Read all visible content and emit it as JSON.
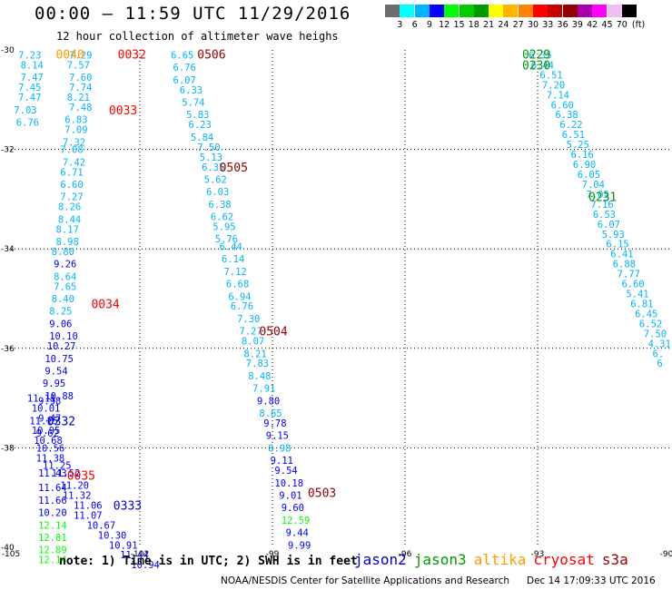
{
  "header": {
    "title": "00:00 — 11:59 UTC 11/29/2016",
    "subtitle": "12 hour collection of altimeter wave heighs"
  },
  "colorbar": {
    "colors": [
      "#6e6e6e",
      "#00ffff",
      "#00b4ff",
      "#0000ff",
      "#00ff00",
      "#00cd00",
      "#009900",
      "#ffff00",
      "#ffb400",
      "#ff8200",
      "#ff0000",
      "#c80000",
      "#960000",
      "#aa00aa",
      "#ff00ff",
      "#f0bef0",
      "#000000"
    ],
    "labels": [
      "3",
      "6",
      "9",
      "12",
      "15",
      "18",
      "21",
      "24",
      "27",
      "30",
      "33",
      "36",
      "39",
      "42",
      "45",
      "70"
    ],
    "unit": "(ft)"
  },
  "footer": {
    "note": "note: 1) Time is in UTC; 2) SWH is in feet",
    "legend": [
      {
        "name": "jason2",
        "color": "#0000c8"
      },
      {
        "name": "jason3",
        "color": "#009900"
      },
      {
        "name": "altika",
        "color": "#ff9900"
      },
      {
        "name": "cryosat",
        "color": "#ff0000"
      },
      {
        "name": "s3a",
        "color": "#960000"
      }
    ],
    "credit": "NOAA/NESDIS Center for Satellite Applications and Research",
    "timestamp": "Dec 14 17:09:33 UTC 2016"
  },
  "chart_data": {
    "type": "scatter",
    "title": "00:00 — 11:59 UTC 11/29/2016",
    "xlim": [
      -105,
      -90
    ],
    "ylim": [
      -40,
      -30
    ],
    "xticks": [
      -105,
      -102,
      -99,
      -96,
      -93,
      -90
    ],
    "xtick_labels": [
      "-105",
      "-102",
      "-99",
      "-96",
      "-93",
      "-90"
    ],
    "yticks": [
      -30,
      -32,
      -34,
      -36,
      -38,
      -40
    ],
    "ytick_labels": [
      "-30",
      "-32",
      "-34",
      "-36",
      "-38",
      "-40"
    ],
    "grid": true,
    "tracks": [
      {
        "satellite": "altika",
        "time": "0040",
        "label_x": -103.9,
        "label_y": -30.08
      },
      {
        "satellite": "cryosat",
        "time": "0032",
        "label_x": -102.5,
        "label_y": -30.08
      },
      {
        "satellite": "cryosat",
        "time": "0033",
        "label_x": -102.7,
        "label_y": -31.2
      },
      {
        "satellite": "cryosat",
        "time": "0034",
        "label_x": -103.1,
        "label_y": -35.1
      },
      {
        "satellite": "cryosat",
        "time": "0035",
        "label_x": -103.65,
        "label_y": -38.55
      },
      {
        "satellite": "jason2",
        "time": "0332",
        "label_x": -104.1,
        "label_y": -37.45
      },
      {
        "satellite": "jason2",
        "time": "0333",
        "label_x": -102.6,
        "label_y": -39.15
      },
      {
        "satellite": "s3a",
        "time": "0506",
        "label_x": -100.7,
        "label_y": -30.08
      },
      {
        "satellite": "s3a",
        "time": "0505",
        "label_x": -100.2,
        "label_y": -32.35
      },
      {
        "satellite": "s3a",
        "time": "0504",
        "label_x": -99.3,
        "label_y": -35.65
      },
      {
        "satellite": "s3a",
        "time": "0503",
        "label_x": -98.2,
        "label_y": -38.9
      },
      {
        "satellite": "jason3",
        "time": "0229",
        "label_x": -93.35,
        "label_y": -30.08
      },
      {
        "satellite": "jason3",
        "time": "0230",
        "label_x": -93.35,
        "label_y": -30.3
      },
      {
        "satellite": "jason3",
        "time": "0231",
        "label_x": -91.85,
        "label_y": -32.95
      }
    ],
    "points": [
      {
        "x": -104.75,
        "y": -30.1,
        "v": "7.23",
        "c": "#00b4ff"
      },
      {
        "x": -104.7,
        "y": -30.3,
        "v": "8.14",
        "c": "#00b4ff"
      },
      {
        "x": -104.7,
        "y": -30.55,
        "v": "7.47",
        "c": "#00b4ff"
      },
      {
        "x": -104.75,
        "y": -30.75,
        "v": "7.45",
        "c": "#00b4ff"
      },
      {
        "x": -104.75,
        "y": -30.95,
        "v": "7.47",
        "c": "#00b4ff"
      },
      {
        "x": -104.85,
        "y": -31.2,
        "v": "7.03",
        "c": "#00b4ff"
      },
      {
        "x": -104.8,
        "y": -31.45,
        "v": "6.76",
        "c": "#00b4ff"
      },
      {
        "x": -103.6,
        "y": -30.1,
        "v": "7.29",
        "c": "#00b4ff"
      },
      {
        "x": -103.65,
        "y": -30.3,
        "v": "7.57",
        "c": "#00b4ff"
      },
      {
        "x": -103.6,
        "y": -30.55,
        "v": "7.60",
        "c": "#00b4ff"
      },
      {
        "x": -103.6,
        "y": -30.75,
        "v": "7.74",
        "c": "#00b4ff"
      },
      {
        "x": -103.65,
        "y": -30.95,
        "v": "8.21",
        "c": "#00b4ff"
      },
      {
        "x": -103.6,
        "y": -31.15,
        "v": "7.48",
        "c": "#00b4ff"
      },
      {
        "x": -103.7,
        "y": -31.4,
        "v": "6.83",
        "c": "#00b4ff"
      },
      {
        "x": -103.7,
        "y": -31.6,
        "v": "7.09",
        "c": "#00b4ff"
      },
      {
        "x": -103.75,
        "y": -31.85,
        "v": "7.32",
        "c": "#00b4ff"
      },
      {
        "x": -103.8,
        "y": -32.0,
        "v": "7.08",
        "c": "#00b4ff"
      },
      {
        "x": -103.75,
        "y": -32.25,
        "v": "7.42",
        "c": "#00b4ff"
      },
      {
        "x": -103.8,
        "y": -32.45,
        "v": "6.71",
        "c": "#00b4ff"
      },
      {
        "x": -103.8,
        "y": -32.7,
        "v": "6.60",
        "c": "#00b4ff"
      },
      {
        "x": -103.8,
        "y": -32.95,
        "v": "7.27",
        "c": "#00b4ff"
      },
      {
        "x": -103.85,
        "y": -33.15,
        "v": "8.26",
        "c": "#00b4ff"
      },
      {
        "x": -103.85,
        "y": -33.4,
        "v": "8.44",
        "c": "#00b4ff"
      },
      {
        "x": -103.9,
        "y": -33.6,
        "v": "8.17",
        "c": "#00b4ff"
      },
      {
        "x": -103.9,
        "y": -33.85,
        "v": "8.98",
        "c": "#00b4ff"
      },
      {
        "x": -104.0,
        "y": -34.05,
        "v": "8.80",
        "c": "#00b4ff"
      },
      {
        "x": -103.95,
        "y": -34.3,
        "v": "9.26",
        "c": "#0000ff"
      },
      {
        "x": -103.95,
        "y": -34.55,
        "v": "8.64",
        "c": "#00b4ff"
      },
      {
        "x": -103.95,
        "y": -34.75,
        "v": "7.65",
        "c": "#00b4ff"
      },
      {
        "x": -104.0,
        "y": -35.0,
        "v": "8.40",
        "c": "#00b4ff"
      },
      {
        "x": -104.05,
        "y": -35.25,
        "v": "8.25",
        "c": "#00b4ff"
      },
      {
        "x": -104.05,
        "y": -35.5,
        "v": "9.06",
        "c": "#0000ff"
      },
      {
        "x": -104.05,
        "y": -35.75,
        "v": "10.10",
        "c": "#0000ff"
      },
      {
        "x": -104.1,
        "y": -35.95,
        "v": "10.27",
        "c": "#0000ff"
      },
      {
        "x": -104.15,
        "y": -36.2,
        "v": "10.75",
        "c": "#0000ff"
      },
      {
        "x": -104.15,
        "y": -36.45,
        "v": "9.54",
        "c": "#0000ff"
      },
      {
        "x": -104.2,
        "y": -36.7,
        "v": "9.95",
        "c": "#0000ff"
      },
      {
        "x": -104.15,
        "y": -36.95,
        "v": "10.88",
        "c": "#0000ff"
      },
      {
        "x": -104.3,
        "y": -37.05,
        "v": "9.98",
        "c": "#0000ff"
      },
      {
        "x": -104.55,
        "y": -37.0,
        "v": "11.11",
        "c": "#0000ff"
      },
      {
        "x": -104.45,
        "y": -37.2,
        "v": "10.01",
        "c": "#0000ff"
      },
      {
        "x": -104.3,
        "y": -37.4,
        "v": "9.47",
        "c": "#0000ff"
      },
      {
        "x": -104.5,
        "y": -37.45,
        "v": "11.15",
        "c": "#0000ff"
      },
      {
        "x": -104.35,
        "y": -37.7,
        "v": "9.62",
        "c": "#0000ff"
      },
      {
        "x": -104.45,
        "y": -37.65,
        "v": "10.95",
        "c": "#0000ff"
      },
      {
        "x": -104.4,
        "y": -37.85,
        "v": "10.68",
        "c": "#0000ff"
      },
      {
        "x": -104.35,
        "y": -38.0,
        "v": "10.56",
        "c": "#0000ff"
      },
      {
        "x": -104.35,
        "y": -38.2,
        "v": "11.38",
        "c": "#0000ff"
      },
      {
        "x": -104.2,
        "y": -38.35,
        "v": "11.25",
        "c": "#0000ff"
      },
      {
        "x": -104.3,
        "y": -38.5,
        "v": "11.43",
        "c": "#0000ff"
      },
      {
        "x": -104.0,
        "y": -38.5,
        "v": "11.52",
        "c": "#0000ff"
      },
      {
        "x": -103.8,
        "y": -38.75,
        "v": "11.20",
        "c": "#0000ff"
      },
      {
        "x": -104.3,
        "y": -38.8,
        "v": "11.64",
        "c": "#0000ff"
      },
      {
        "x": -103.75,
        "y": -38.95,
        "v": "11.32",
        "c": "#0000ff"
      },
      {
        "x": -104.3,
        "y": -39.05,
        "v": "11.66",
        "c": "#0000ff"
      },
      {
        "x": -103.5,
        "y": -39.15,
        "v": "11.06",
        "c": "#0000ff"
      },
      {
        "x": -104.3,
        "y": -39.3,
        "v": "10.20",
        "c": "#0000ff"
      },
      {
        "x": -103.5,
        "y": -39.35,
        "v": "11.07",
        "c": "#0000ff"
      },
      {
        "x": -104.3,
        "y": -39.55,
        "v": "12.14",
        "c": "#00ff00"
      },
      {
        "x": -103.2,
        "y": -39.55,
        "v": "10.67",
        "c": "#0000ff"
      },
      {
        "x": -104.3,
        "y": -39.8,
        "v": "12.81",
        "c": "#00ff00"
      },
      {
        "x": -102.95,
        "y": -39.75,
        "v": "10.30",
        "c": "#0000ff"
      },
      {
        "x": -104.3,
        "y": -40.05,
        "v": "12.89",
        "c": "#00ff00"
      },
      {
        "x": -102.7,
        "y": -39.95,
        "v": "10.91",
        "c": "#0000ff"
      },
      {
        "x": -104.3,
        "y": -40.25,
        "v": "12.14",
        "c": "#00ff00"
      },
      {
        "x": -102.45,
        "y": -40.15,
        "v": "11.44",
        "c": "#0000ff"
      },
      {
        "x": -102.2,
        "y": -40.35,
        "v": "10.94",
        "c": "#0000ff"
      },
      {
        "x": -101.3,
        "y": -30.1,
        "v": "6.65",
        "c": "#00b4ff"
      },
      {
        "x": -101.25,
        "y": -30.35,
        "v": "6.76",
        "c": "#00b4ff"
      },
      {
        "x": -101.25,
        "y": -30.6,
        "v": "6.07",
        "c": "#00b4ff"
      },
      {
        "x": -101.1,
        "y": -30.8,
        "v": "6.33",
        "c": "#00b4ff"
      },
      {
        "x": -101.05,
        "y": -31.05,
        "v": "5.74",
        "c": "#00b4ff"
      },
      {
        "x": -100.95,
        "y": -31.3,
        "v": "5.83",
        "c": "#00b4ff"
      },
      {
        "x": -100.9,
        "y": -31.5,
        "v": "6.23",
        "c": "#00b4ff"
      },
      {
        "x": -100.85,
        "y": -31.75,
        "v": "5.84",
        "c": "#00b4ff"
      },
      {
        "x": -100.7,
        "y": -31.95,
        "v": "7.50",
        "c": "#00b4ff"
      },
      {
        "x": -100.65,
        "y": -32.15,
        "v": "5.13",
        "c": "#00b4ff"
      },
      {
        "x": -100.6,
        "y": -32.35,
        "v": "6.35",
        "c": "#00b4ff"
      },
      {
        "x": -100.55,
        "y": -32.6,
        "v": "5.62",
        "c": "#00b4ff"
      },
      {
        "x": -100.5,
        "y": -32.85,
        "v": "6.03",
        "c": "#00b4ff"
      },
      {
        "x": -100.45,
        "y": -33.1,
        "v": "6.38",
        "c": "#00b4ff"
      },
      {
        "x": -100.4,
        "y": -33.35,
        "v": "6.62",
        "c": "#00b4ff"
      },
      {
        "x": -100.35,
        "y": -33.55,
        "v": "5.95",
        "c": "#00b4ff"
      },
      {
        "x": -100.3,
        "y": -33.8,
        "v": "5.76",
        "c": "#00b4ff"
      },
      {
        "x": -100.2,
        "y": -33.95,
        "v": "6.44",
        "c": "#00b4ff"
      },
      {
        "x": -100.15,
        "y": -34.2,
        "v": "6.14",
        "c": "#00b4ff"
      },
      {
        "x": -100.1,
        "y": -34.45,
        "v": "7.12",
        "c": "#00b4ff"
      },
      {
        "x": -100.05,
        "y": -34.7,
        "v": "6.68",
        "c": "#00b4ff"
      },
      {
        "x": -100.0,
        "y": -34.95,
        "v": "6.94",
        "c": "#00b4ff"
      },
      {
        "x": -99.95,
        "y": -35.15,
        "v": "6.76",
        "c": "#00b4ff"
      },
      {
        "x": -99.8,
        "y": -35.4,
        "v": "7.30",
        "c": "#00b4ff"
      },
      {
        "x": -99.75,
        "y": -35.65,
        "v": "7.27",
        "c": "#00b4ff"
      },
      {
        "x": -99.7,
        "y": -35.85,
        "v": "8.07",
        "c": "#00b4ff"
      },
      {
        "x": -99.65,
        "y": -36.1,
        "v": "8.21",
        "c": "#00b4ff"
      },
      {
        "x": -99.6,
        "y": -36.3,
        "v": "7.83",
        "c": "#00b4ff"
      },
      {
        "x": -99.55,
        "y": -36.55,
        "v": "8.48",
        "c": "#00b4ff"
      },
      {
        "x": -99.45,
        "y": -36.8,
        "v": "7.91",
        "c": "#00b4ff"
      },
      {
        "x": -99.35,
        "y": -37.05,
        "v": "9.80",
        "c": "#0000ff"
      },
      {
        "x": -99.3,
        "y": -37.3,
        "v": "8.65",
        "c": "#00b4ff"
      },
      {
        "x": -99.2,
        "y": -37.5,
        "v": "9.78",
        "c": "#0000ff"
      },
      {
        "x": -99.15,
        "y": -37.75,
        "v": "9.15",
        "c": "#0000ff"
      },
      {
        "x": -99.1,
        "y": -38.0,
        "v": "8.98",
        "c": "#00b4ff"
      },
      {
        "x": -99.05,
        "y": -38.25,
        "v": "9.11",
        "c": "#0000ff"
      },
      {
        "x": -98.95,
        "y": -38.45,
        "v": "9.54",
        "c": "#0000ff"
      },
      {
        "x": -98.95,
        "y": -38.7,
        "v": "10.18",
        "c": "#0000ff"
      },
      {
        "x": -98.85,
        "y": -38.95,
        "v": "9.01",
        "c": "#0000ff"
      },
      {
        "x": -98.8,
        "y": -39.2,
        "v": "9.60",
        "c": "#0000ff"
      },
      {
        "x": -98.8,
        "y": -39.45,
        "v": "12.59",
        "c": "#00ff00"
      },
      {
        "x": -98.7,
        "y": -39.7,
        "v": "9.44",
        "c": "#0000ff"
      },
      {
        "x": -98.65,
        "y": -39.95,
        "v": "9.99",
        "c": "#0000ff"
      },
      {
        "x": -93.2,
        "y": -30.1,
        "v": "6.35",
        "c": "#00b4ff"
      },
      {
        "x": -93.15,
        "y": -30.3,
        "v": "6.44",
        "c": "#00b4ff"
      },
      {
        "x": -92.95,
        "y": -30.5,
        "v": "6.51",
        "c": "#00b4ff"
      },
      {
        "x": -92.9,
        "y": -30.7,
        "v": "7.20",
        "c": "#00b4ff"
      },
      {
        "x": -92.8,
        "y": -30.9,
        "v": "7.14",
        "c": "#00b4ff"
      },
      {
        "x": -92.7,
        "y": -31.1,
        "v": "6.60",
        "c": "#00b4ff"
      },
      {
        "x": -92.6,
        "y": -31.3,
        "v": "6.38",
        "c": "#00b4ff"
      },
      {
        "x": -92.5,
        "y": -31.5,
        "v": "6.22",
        "c": "#00b4ff"
      },
      {
        "x": -92.45,
        "y": -31.7,
        "v": "6.51",
        "c": "#00b4ff"
      },
      {
        "x": -92.35,
        "y": -31.9,
        "v": "5.25",
        "c": "#00b4ff"
      },
      {
        "x": -92.25,
        "y": -32.1,
        "v": "6.16",
        "c": "#00b4ff"
      },
      {
        "x": -92.2,
        "y": -32.3,
        "v": "6.90",
        "c": "#00b4ff"
      },
      {
        "x": -92.1,
        "y": -32.5,
        "v": "6.05",
        "c": "#00b4ff"
      },
      {
        "x": -92.0,
        "y": -32.7,
        "v": "7.04",
        "c": "#00b4ff"
      },
      {
        "x": -91.9,
        "y": -32.9,
        "v": "7.05",
        "c": "#00b4ff"
      },
      {
        "x": -91.8,
        "y": -33.1,
        "v": "7.16",
        "c": "#00b4ff"
      },
      {
        "x": -91.75,
        "y": -33.3,
        "v": "6.53",
        "c": "#00b4ff"
      },
      {
        "x": -91.65,
        "y": -33.5,
        "v": "6.07",
        "c": "#00b4ff"
      },
      {
        "x": -91.55,
        "y": -33.7,
        "v": "5.93",
        "c": "#00b4ff"
      },
      {
        "x": -91.45,
        "y": -33.9,
        "v": "6.15",
        "c": "#00b4ff"
      },
      {
        "x": -91.35,
        "y": -34.1,
        "v": "6.41",
        "c": "#00b4ff"
      },
      {
        "x": -91.3,
        "y": -34.3,
        "v": "6.88",
        "c": "#00b4ff"
      },
      {
        "x": -91.2,
        "y": -34.5,
        "v": "7.77",
        "c": "#00b4ff"
      },
      {
        "x": -91.1,
        "y": -34.7,
        "v": "6.60",
        "c": "#00b4ff"
      },
      {
        "x": -91.0,
        "y": -34.9,
        "v": "5.41",
        "c": "#00b4ff"
      },
      {
        "x": -90.9,
        "y": -35.1,
        "v": "6.81",
        "c": "#00b4ff"
      },
      {
        "x": -90.8,
        "y": -35.3,
        "v": "6.45",
        "c": "#00b4ff"
      },
      {
        "x": -90.7,
        "y": -35.5,
        "v": "6.52",
        "c": "#00b4ff"
      },
      {
        "x": -90.6,
        "y": -35.7,
        "v": "7.50",
        "c": "#00b4ff"
      },
      {
        "x": -90.5,
        "y": -35.9,
        "v": "4.31",
        "c": "#00b4ff"
      },
      {
        "x": -90.4,
        "y": -36.1,
        "v": "6.",
        "c": "#00b4ff"
      },
      {
        "x": -90.3,
        "y": -36.3,
        "v": "6",
        "c": "#00b4ff"
      }
    ]
  }
}
